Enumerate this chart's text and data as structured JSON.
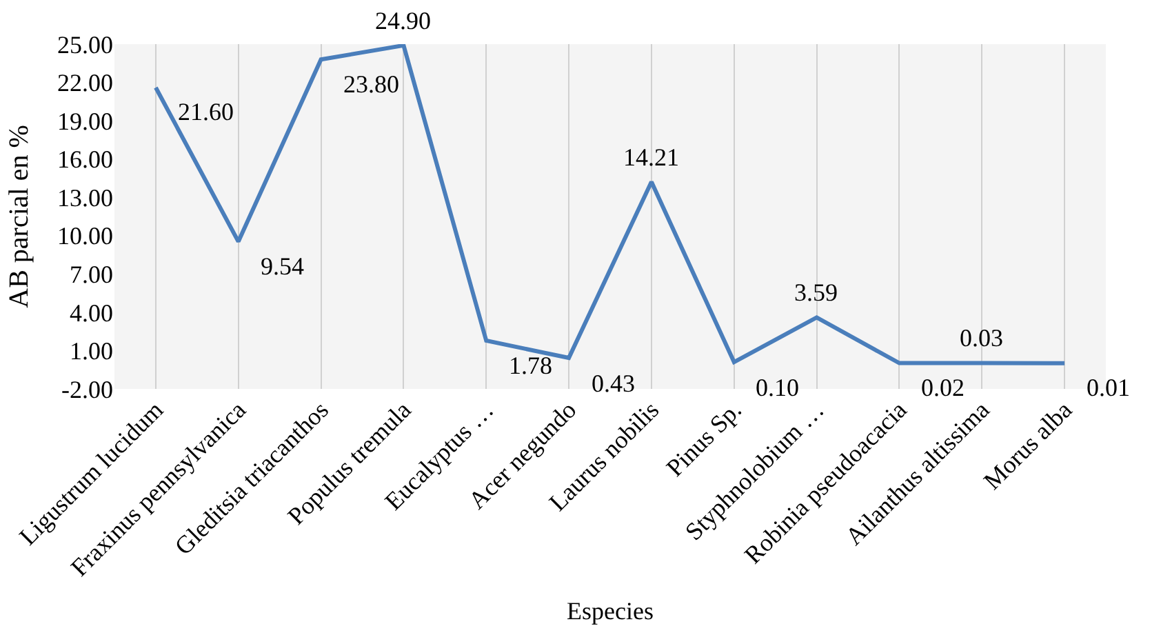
{
  "chart_data": {
    "type": "line",
    "xlabel": "Especies",
    "ylabel": "AB parcial en %",
    "categories": [
      "Ligustrum lucidum",
      "Fraxinus pennsylvanica",
      "Gleditsia triacanthos",
      "Populus tremula",
      "Eucalyptus …",
      "Acer negundo",
      "Laurus nobilis",
      "Pinus Sp.",
      "Styphnolobium …",
      "Robinia pseudoacacia",
      "Ailanthus altissima",
      "Morus alba"
    ],
    "series": [
      {
        "color": "#4a7ebb",
        "values": [
          21.6,
          9.54,
          23.8,
          24.9,
          1.78,
          0.43,
          14.21,
          0.1,
          3.59,
          0.02,
          0.03,
          0.01
        ],
        "value_labels": [
          "21.60",
          "9.54",
          "23.80",
          "24.90",
          "1.78",
          "0.43",
          "14.21",
          "0.10",
          "3.59",
          "0.02",
          "0.03",
          "0.01"
        ]
      }
    ],
    "ylim": [
      -2,
      25
    ],
    "yticks": [
      {
        "value": -2,
        "label": "-2.00"
      },
      {
        "value": 1,
        "label": "1.00"
      },
      {
        "value": 4,
        "label": "4.00"
      },
      {
        "value": 7,
        "label": "7.00"
      },
      {
        "value": 10,
        "label": "10.00"
      },
      {
        "value": 13,
        "label": "13.00"
      },
      {
        "value": 16,
        "label": "16.00"
      },
      {
        "value": 19,
        "label": "19.00"
      },
      {
        "value": 22,
        "label": "22.00"
      },
      {
        "value": 25,
        "label": "25.00"
      }
    ],
    "grid": "x",
    "marker": "none",
    "line_style": "solid"
  }
}
